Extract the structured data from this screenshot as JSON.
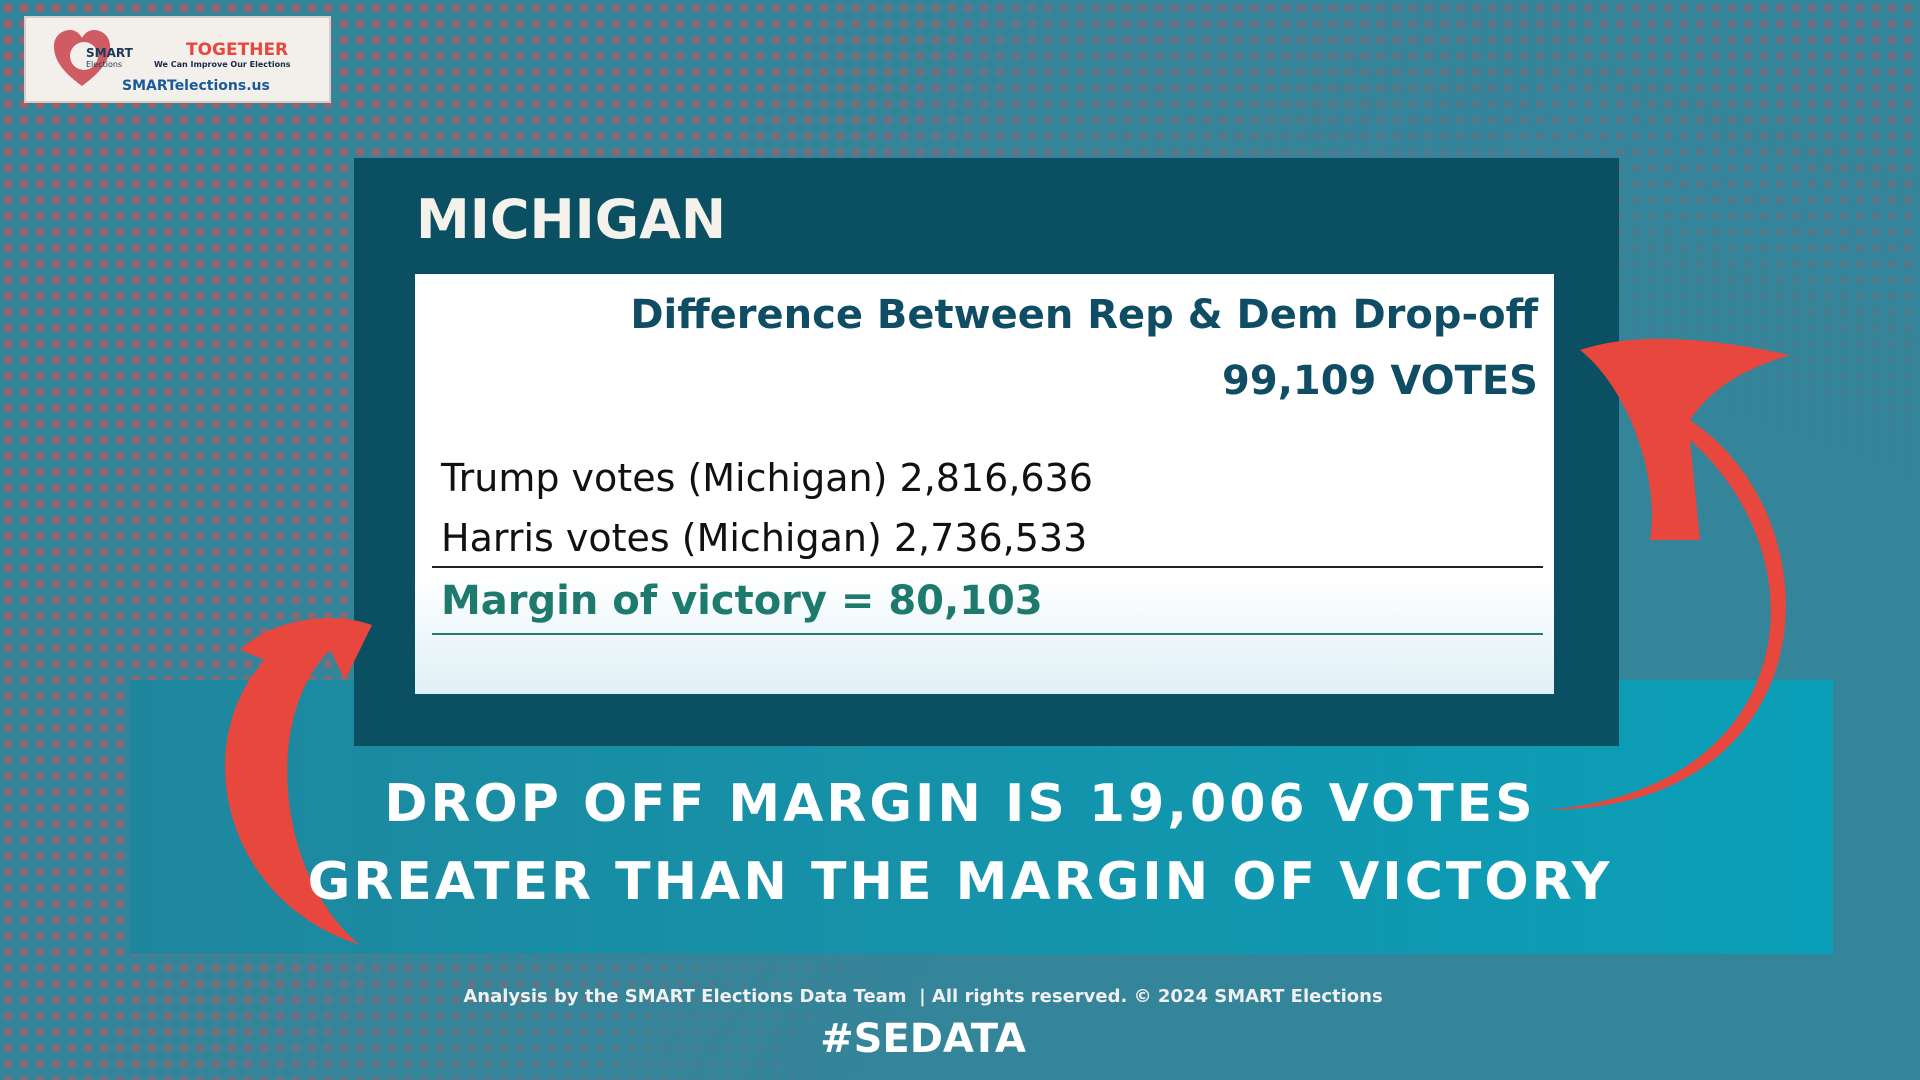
{
  "logo": {
    "mark_top": "SMART",
    "mark_bottom": "Elections",
    "tagline": "TOGETHER",
    "subline": "We Can Improve Our Elections",
    "url": "SMARTelections.us"
  },
  "panel": {
    "title": "MICHIGAN",
    "heading": "Difference Between Rep & Dem Drop-off",
    "heading_value": "99,109 VOTES",
    "rows": [
      "Trump votes (Michigan) 2,816,636",
      "Harris votes (Michigan) 2,736,533"
    ],
    "total": "Margin of victory = 80,103"
  },
  "headline": [
    "DROP OFF MARGIN IS 19,006 VOTES",
    "GREATER THAN THE MARGIN OF VICTORY"
  ],
  "footer": {
    "credit": "Analysis by the SMART Elections Data Team  | All rights reserved. © 2024 SMART Elections",
    "hashtag": "#SEDATA"
  }
}
